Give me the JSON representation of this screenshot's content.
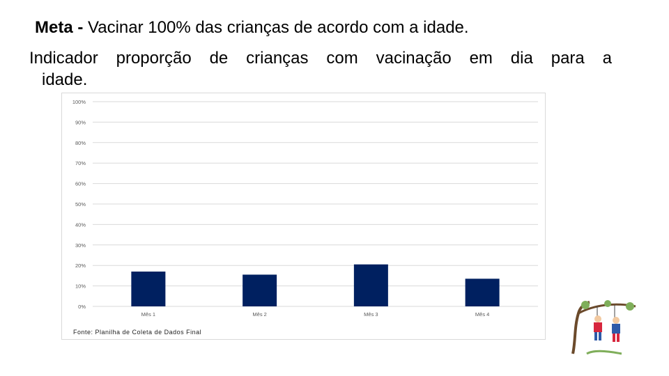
{
  "meta": {
    "label": "Meta - ",
    "text": "Vacinar 100% das crianças de acordo com a idade."
  },
  "indicador": {
    "line1": "Indicador proporção de crianças com vacinação em dia para a",
    "line2": "idade."
  },
  "source": "Fonte: Planilha de Coleta de Dados Final",
  "colors": {
    "bar": "#002060",
    "grid": "#d9d9d9",
    "tick": "#595959"
  },
  "clipart": {
    "icon": "children-swinging-tree-icon"
  },
  "chart_data": {
    "type": "bar",
    "categories": [
      "Mês 1",
      "Mês 2",
      "Mês 3",
      "Mês 4"
    ],
    "values": [
      17,
      15.5,
      20.5,
      13.5
    ],
    "ylim": [
      0,
      100
    ],
    "yticks": [
      "0%",
      "10%",
      "20%",
      "30%",
      "40%",
      "50%",
      "60%",
      "70%",
      "80%",
      "90%",
      "100%"
    ],
    "grid": true,
    "legend": "none"
  }
}
